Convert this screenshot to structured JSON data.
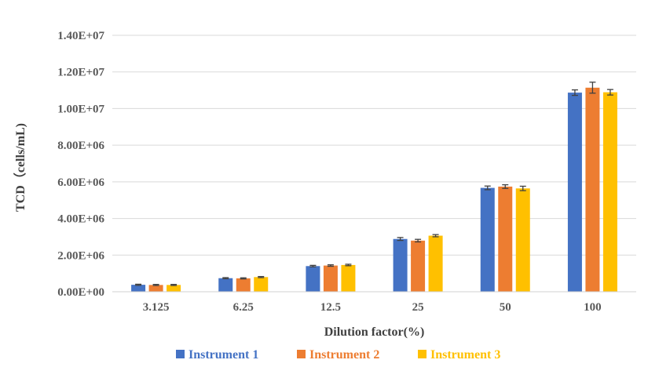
{
  "chart_data": {
    "type": "bar",
    "xlabel": "Dilution factor(%)",
    "ylabel": "TCD（cells/mL)",
    "categories": [
      "3.125",
      "6.25",
      "12.5",
      "25",
      "50",
      "100"
    ],
    "ylim": [
      0,
      14000000
    ],
    "yticks": [
      0,
      2000000,
      4000000,
      6000000,
      8000000,
      10000000,
      12000000,
      14000000
    ],
    "ytick_labels": [
      "0.00E+00",
      "2.00E+06",
      "4.00E+06",
      "6.00E+06",
      "8.00E+06",
      "1.00E+07",
      "1.20E+07",
      "1.40E+07"
    ],
    "grid": "horizontal",
    "legend_position": "bottom",
    "series": [
      {
        "name": "Instrument 1",
        "color": "#4472C4",
        "values": [
          380000,
          740000,
          1400000,
          2880000,
          5670000,
          10870000
        ],
        "errors": [
          30000,
          30000,
          40000,
          80000,
          100000,
          150000
        ]
      },
      {
        "name": "Instrument 2",
        "color": "#ED7D31",
        "values": [
          370000,
          730000,
          1430000,
          2790000,
          5740000,
          11140000
        ],
        "errors": [
          30000,
          30000,
          40000,
          70000,
          100000,
          300000
        ]
      },
      {
        "name": "Instrument 3",
        "color": "#FFC000",
        "values": [
          370000,
          800000,
          1460000,
          3060000,
          5640000,
          10890000
        ],
        "errors": [
          30000,
          30000,
          40000,
          60000,
          120000,
          150000
        ]
      }
    ]
  }
}
